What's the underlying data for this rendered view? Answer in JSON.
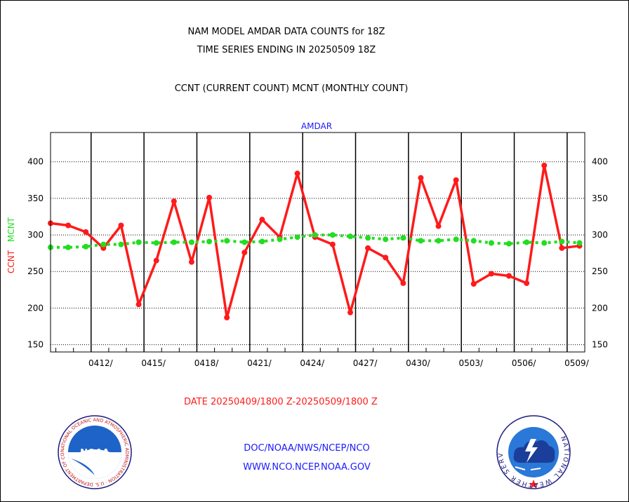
{
  "header": {
    "title_line1": "NAM MODEL AMDAR DATA COUNTS for 18Z",
    "title_line2": "TIME SERIES ENDING IN 20250509 18Z",
    "subtitle": "CCNT (CURRENT COUNT) MCNT (MONTHLY COUNT)"
  },
  "footer": {
    "date_range": "DATE 20250409/1800 Z-20250509/1800 Z",
    "agency": "DOC/NOAA/NWS/NCEP/NCO",
    "website": "WWW.NCO.NCEP.NOAA.GOV"
  },
  "logos": {
    "left_icon": "noaa-logo-icon",
    "left_text": "NOAA",
    "left_ring_text": "NATIONAL OCEANIC AND ATMOSPHERIC ADMINISTRATION · U.S. DEPARTMENT OF COMMERCE",
    "right_icon": "national-weather-service-logo-icon",
    "right_ring_text": "NATIONAL WEATHER SERVICE"
  },
  "colors": {
    "ccnt": "#ff1a1a",
    "mcnt": "#22dd22",
    "label_blue": "#1a1aff",
    "grid": "#000000"
  },
  "chart_data": {
    "type": "line",
    "title": "AMDAR",
    "ylabel_parts": [
      {
        "text": "CCNT",
        "color": "#ff1a1a"
      },
      {
        "text": "MCNT",
        "color": "#22dd22"
      }
    ],
    "xlim": [
      0,
      30.3
    ],
    "ylim": [
      140,
      440
    ],
    "yticks": [
      150,
      200,
      250,
      300,
      350,
      400
    ],
    "xtick_labels": [
      {
        "x": 3,
        "label": "0412/"
      },
      {
        "x": 6,
        "label": "0415/"
      },
      {
        "x": 9,
        "label": "0418/"
      },
      {
        "x": 12,
        "label": "0421/"
      },
      {
        "x": 15,
        "label": "0424/"
      },
      {
        "x": 18,
        "label": "0427/"
      },
      {
        "x": 21,
        "label": "0430/"
      },
      {
        "x": 24,
        "label": "0503/"
      },
      {
        "x": 27,
        "label": "0506/"
      },
      {
        "x": 30,
        "label": "0509/"
      }
    ],
    "major_gridlines_x": [
      2.3,
      5.3,
      8.3,
      11.3,
      14.3,
      17.3,
      20.3,
      23.3,
      26.3,
      29.3
    ],
    "grid": true,
    "series": [
      {
        "name": "CCNT",
        "style": "solid",
        "x": [
          0,
          1,
          2,
          3,
          4,
          5,
          6,
          7,
          8,
          9,
          10,
          11,
          12,
          13,
          14,
          15,
          16,
          17,
          18,
          19,
          20,
          21,
          22,
          23,
          24,
          25,
          26,
          27,
          28,
          29,
          30
        ],
        "values": [
          316,
          313,
          304,
          282,
          313,
          205,
          265,
          346,
          263,
          351,
          187,
          276,
          321,
          297,
          384,
          297,
          287,
          194,
          282,
          269,
          234,
          378,
          312,
          375,
          233,
          247,
          244,
          234,
          395,
          282,
          285
        ]
      },
      {
        "name": "MCNT",
        "style": "dotted",
        "x": [
          0,
          1,
          2,
          3,
          4,
          5,
          6,
          7,
          8,
          9,
          10,
          11,
          12,
          13,
          14,
          15,
          16,
          17,
          18,
          19,
          20,
          21,
          22,
          23,
          24,
          25,
          26,
          27,
          28,
          29,
          30
        ],
        "values": [
          283,
          283,
          284,
          287,
          287,
          290,
          289,
          290,
          290,
          291,
          292,
          290,
          291,
          294,
          297,
          300,
          300,
          298,
          296,
          294,
          296,
          292,
          292,
          294,
          292,
          289,
          288,
          290,
          289,
          291,
          289
        ]
      }
    ]
  }
}
